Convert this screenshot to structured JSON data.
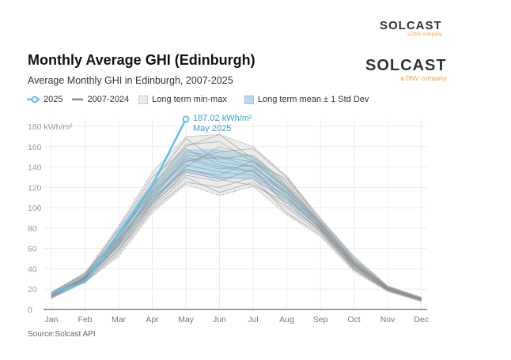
{
  "logos": [
    {
      "name": "SOLCAST",
      "tagline": "a DNV company"
    },
    {
      "name": "SOLCAST",
      "tagline": "a DNV company"
    }
  ],
  "colors": {
    "series_2025": "#5bc0eb",
    "historical": "#8c8c8c",
    "minmax_fill": "#ebebeb",
    "std_fill": "#b9dcec",
    "annotation": "#3a9fd0"
  },
  "source": "Source:Solcast API",
  "chart_data": {
    "type": "line",
    "title": "Monthly Average GHI (Edinburgh)",
    "subtitle": "Average Monthly GHI in Edinburgh, 2007-2025",
    "xlabel": "",
    "ylabel": "",
    "y_unit": "kWh/m²",
    "ylim": [
      0,
      180
    ],
    "yticks": [
      0,
      20,
      40,
      60,
      80,
      100,
      120,
      140,
      160,
      180
    ],
    "ytick_labels": [
      "0",
      "20",
      "40",
      "60",
      "80",
      "100",
      "120",
      "140",
      "160",
      "180 kWh/m²"
    ],
    "grid": true,
    "legend_position": "top-left",
    "categories": [
      "Jan",
      "Feb",
      "Mar",
      "Apr",
      "May",
      "Jun",
      "Jul",
      "Aug",
      "Sep",
      "Oct",
      "Nov",
      "Dec"
    ],
    "legend": [
      "2025",
      "2007-2024",
      "Long term min-max",
      "Long term mean ± 1 Std Dev"
    ],
    "series_2025": {
      "name": "2025",
      "values": [
        16,
        27,
        75,
        122,
        187.02
      ]
    },
    "annotation": {
      "value": "187.02 kWh/m²",
      "label": "May 2025"
    },
    "minmax": {
      "name": "Long term min-max",
      "min": [
        11,
        27,
        52,
        95,
        123,
        112,
        121,
        93,
        72,
        37,
        18,
        8
      ],
      "max": [
        17,
        36,
        82,
        135,
        170,
        172,
        160,
        131,
        90,
        52,
        23,
        12
      ]
    },
    "std_band": {
      "name": "Long term mean ± 1 Std Dev",
      "lower": [
        13,
        29,
        62,
        105,
        135,
        128,
        130,
        105,
        78,
        42,
        19,
        9
      ],
      "upper": [
        16,
        33,
        74,
        122,
        157,
        157,
        150,
        122,
        86,
        48,
        22,
        11
      ]
    },
    "historical": {
      "name": "2007-2024",
      "series": [
        [
          14,
          30,
          65,
          110,
          150,
          140,
          135,
          110,
          80,
          44,
          20,
          10
        ],
        [
          12,
          28,
          58,
          100,
          130,
          115,
          125,
          100,
          76,
          40,
          19,
          9
        ],
        [
          15,
          33,
          70,
          118,
          155,
          150,
          145,
          118,
          84,
          46,
          21,
          11
        ],
        [
          13,
          31,
          62,
          105,
          140,
          160,
          150,
          125,
          86,
          48,
          22,
          10
        ],
        [
          16,
          35,
          78,
          125,
          168,
          145,
          140,
          115,
          82,
          45,
          20,
          11
        ],
        [
          11,
          27,
          55,
          98,
          125,
          120,
          130,
          95,
          74,
          39,
          18,
          8
        ],
        [
          14,
          32,
          68,
          112,
          145,
          155,
          158,
          130,
          88,
          50,
          22,
          11
        ],
        [
          15,
          29,
          66,
          108,
          138,
          130,
          128,
          108,
          80,
          43,
          20,
          10
        ],
        [
          13,
          30,
          72,
          120,
          160,
          172,
          148,
          120,
          85,
          47,
          21,
          10
        ],
        [
          17,
          34,
          75,
          115,
          148,
          138,
          142,
          112,
          79,
          42,
          20,
          9
        ],
        [
          12,
          29,
          60,
          102,
          135,
          128,
          122,
          105,
          77,
          41,
          19,
          9
        ],
        [
          14,
          31,
          64,
          116,
          152,
          148,
          152,
          122,
          86,
          49,
          22,
          11
        ],
        [
          15,
          33,
          80,
          130,
          158,
          142,
          136,
          114,
          81,
          44,
          20,
          10
        ],
        [
          13,
          28,
          58,
          104,
          132,
          126,
          138,
          102,
          78,
          40,
          19,
          9
        ],
        [
          16,
          36,
          70,
          122,
          162,
          165,
          145,
          128,
          88,
          52,
          23,
          12
        ],
        [
          14,
          30,
          63,
          106,
          142,
          135,
          132,
          110,
          80,
          43,
          20,
          10
        ],
        [
          12,
          32,
          67,
          114,
          146,
          150,
          140,
          116,
          83,
          45,
          21,
          10
        ],
        [
          15,
          31,
          69,
          110,
          137,
          132,
          146,
          119,
          84,
          46,
          21,
          11
        ]
      ]
    }
  }
}
